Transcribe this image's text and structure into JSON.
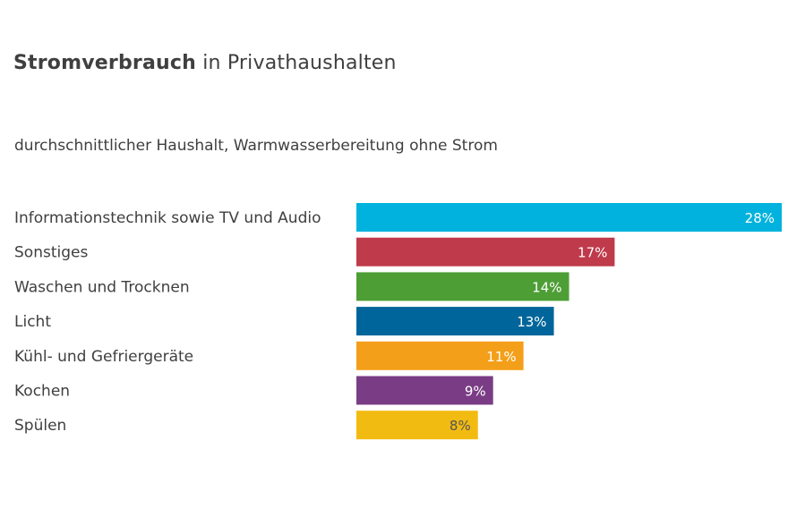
{
  "title": {
    "bold": "Stromverbrauch",
    "rest": "in Privathaushalten"
  },
  "subtitle": "durchschnittlicher Haushalt, Warmwasserbereitung ohne Strom",
  "chart_data": {
    "type": "bar",
    "orientation": "horizontal",
    "categories": [
      "Informationstechnik sowie TV und Audio",
      "Sonstiges",
      "Waschen und Trocknen",
      "Licht",
      "Kühl- und Gefriergeräte",
      "Kochen",
      "Spülen"
    ],
    "values": [
      28,
      17,
      14,
      13,
      11,
      9,
      8
    ],
    "value_labels": [
      "28%",
      "17%",
      "14%",
      "13%",
      "11%",
      "9%",
      "8%"
    ],
    "colors": [
      "#00b2dd",
      "#bf3a4a",
      "#4c9e35",
      "#00659a",
      "#f49f1a",
      "#7a3d85",
      "#f2bb12"
    ],
    "label_colors": [
      "#ffffff",
      "#ffffff",
      "#ffffff",
      "#ffffff",
      "#ffffff",
      "#ffffff",
      "#555555"
    ],
    "unit": "%",
    "xlim": [
      0,
      28
    ],
    "grid": false,
    "legend": "none"
  }
}
